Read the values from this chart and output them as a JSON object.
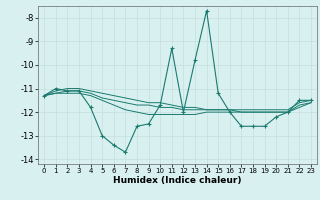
{
  "xlabel": "Humidex (Indice chaleur)",
  "x": [
    0,
    1,
    2,
    3,
    4,
    5,
    6,
    7,
    8,
    9,
    10,
    11,
    12,
    13,
    14,
    15,
    16,
    17,
    18,
    19,
    20,
    21,
    22,
    23
  ],
  "y_main": [
    -11.3,
    -11.0,
    -11.1,
    -11.1,
    -11.8,
    -13.0,
    -13.4,
    -13.7,
    -12.6,
    -12.5,
    -11.7,
    -9.3,
    -12.0,
    -9.8,
    -7.7,
    -11.2,
    -12.0,
    -12.6,
    -12.6,
    -12.6,
    -12.2,
    -12.0,
    -11.5,
    -11.5
  ],
  "y_line1": [
    -11.3,
    -11.1,
    -11.0,
    -11.0,
    -11.1,
    -11.2,
    -11.3,
    -11.4,
    -11.5,
    -11.6,
    -11.6,
    -11.7,
    -11.8,
    -11.8,
    -11.9,
    -11.9,
    -11.9,
    -11.9,
    -11.9,
    -11.9,
    -11.9,
    -11.9,
    -11.6,
    -11.5
  ],
  "y_line2": [
    -11.3,
    -11.2,
    -11.1,
    -11.1,
    -11.2,
    -11.4,
    -11.5,
    -11.6,
    -11.7,
    -11.7,
    -11.8,
    -11.8,
    -11.9,
    -11.9,
    -11.9,
    -11.9,
    -11.9,
    -12.0,
    -12.0,
    -12.0,
    -12.0,
    -12.0,
    -11.7,
    -11.6
  ],
  "y_line3": [
    -11.3,
    -11.2,
    -11.2,
    -11.2,
    -11.3,
    -11.5,
    -11.7,
    -11.9,
    -12.0,
    -12.1,
    -12.1,
    -12.1,
    -12.1,
    -12.1,
    -12.0,
    -12.0,
    -12.0,
    -12.0,
    -12.0,
    -12.0,
    -12.0,
    -12.0,
    -11.8,
    -11.6
  ],
  "ylim": [
    -14.2,
    -7.5
  ],
  "xlim": [
    -0.5,
    23.5
  ],
  "yticks": [
    -14,
    -13,
    -12,
    -11,
    -10,
    -9,
    -8
  ],
  "xticks": [
    0,
    1,
    2,
    3,
    4,
    5,
    6,
    7,
    8,
    9,
    10,
    11,
    12,
    13,
    14,
    15,
    16,
    17,
    18,
    19,
    20,
    21,
    22,
    23
  ],
  "line_color": "#1a7a6e",
  "bg_color": "#d8f0f0",
  "grid_color": "#c8dede"
}
